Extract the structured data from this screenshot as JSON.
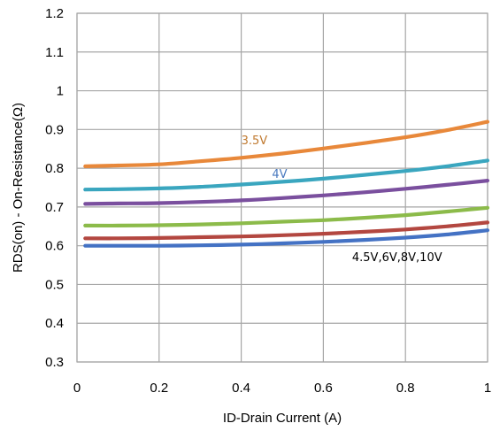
{
  "chart_data": {
    "type": "line",
    "title": "",
    "xlabel": "ID-Drain Current (A)",
    "ylabel": "RDS(on) - On-Resistance(Ω)",
    "xlim": [
      0,
      1
    ],
    "ylim": [
      0.3,
      1.2
    ],
    "x_ticks": [
      "0",
      "0.2",
      "0.4",
      "0.6",
      "0.8",
      "1"
    ],
    "y_ticks": [
      "0.3",
      "0.4",
      "0.5",
      "0.6",
      "0.7",
      "0.8",
      "0.9",
      "1",
      "1.1",
      "1.2"
    ],
    "grid": true,
    "series": [
      {
        "color": "#e8883a",
        "x": [
          0.02,
          0.1,
          0.2,
          0.3,
          0.4,
          0.5,
          0.6,
          0.7,
          0.8,
          0.9,
          1.0
        ],
        "y": [
          0.805,
          0.807,
          0.81,
          0.818,
          0.827,
          0.838,
          0.851,
          0.865,
          0.88,
          0.898,
          0.92
        ]
      },
      {
        "color": "#3aa6bf",
        "x": [
          0.02,
          0.1,
          0.2,
          0.3,
          0.4,
          0.5,
          0.6,
          0.7,
          0.8,
          0.9,
          1.0
        ],
        "y": [
          0.745,
          0.746,
          0.748,
          0.752,
          0.758,
          0.765,
          0.773,
          0.783,
          0.793,
          0.805,
          0.82
        ]
      },
      {
        "color": "#7a4f9e",
        "x": [
          0.02,
          0.1,
          0.2,
          0.3,
          0.4,
          0.5,
          0.6,
          0.7,
          0.8,
          0.9,
          1.0
        ],
        "y": [
          0.708,
          0.709,
          0.71,
          0.713,
          0.717,
          0.723,
          0.73,
          0.738,
          0.747,
          0.757,
          0.768
        ]
      },
      {
        "color": "#8cbb4a",
        "x": [
          0.02,
          0.1,
          0.2,
          0.3,
          0.4,
          0.5,
          0.6,
          0.7,
          0.8,
          0.9,
          1.0
        ],
        "y": [
          0.652,
          0.652,
          0.653,
          0.655,
          0.658,
          0.662,
          0.666,
          0.672,
          0.679,
          0.688,
          0.698
        ]
      },
      {
        "color": "#b34740",
        "x": [
          0.02,
          0.1,
          0.2,
          0.3,
          0.4,
          0.5,
          0.6,
          0.7,
          0.8,
          0.9,
          1.0
        ],
        "y": [
          0.619,
          0.619,
          0.62,
          0.622,
          0.624,
          0.627,
          0.631,
          0.636,
          0.642,
          0.65,
          0.66
        ]
      },
      {
        "color": "#4472c4",
        "x": [
          0.02,
          0.1,
          0.2,
          0.3,
          0.4,
          0.5,
          0.6,
          0.7,
          0.8,
          0.9,
          1.0
        ],
        "y": [
          0.6,
          0.6,
          0.6,
          0.601,
          0.603,
          0.606,
          0.61,
          0.615,
          0.621,
          0.629,
          0.64
        ]
      }
    ],
    "annotations": [
      {
        "text": "3.5V",
        "x": 0.4,
        "y": 0.862,
        "color": "#c07a30"
      },
      {
        "text": "4V",
        "x": 0.475,
        "y": 0.775,
        "color": "#4a7abf"
      },
      {
        "text": "4.5V,6V,8V,10V",
        "x": 0.67,
        "y": 0.56,
        "color": "#000000"
      }
    ]
  }
}
